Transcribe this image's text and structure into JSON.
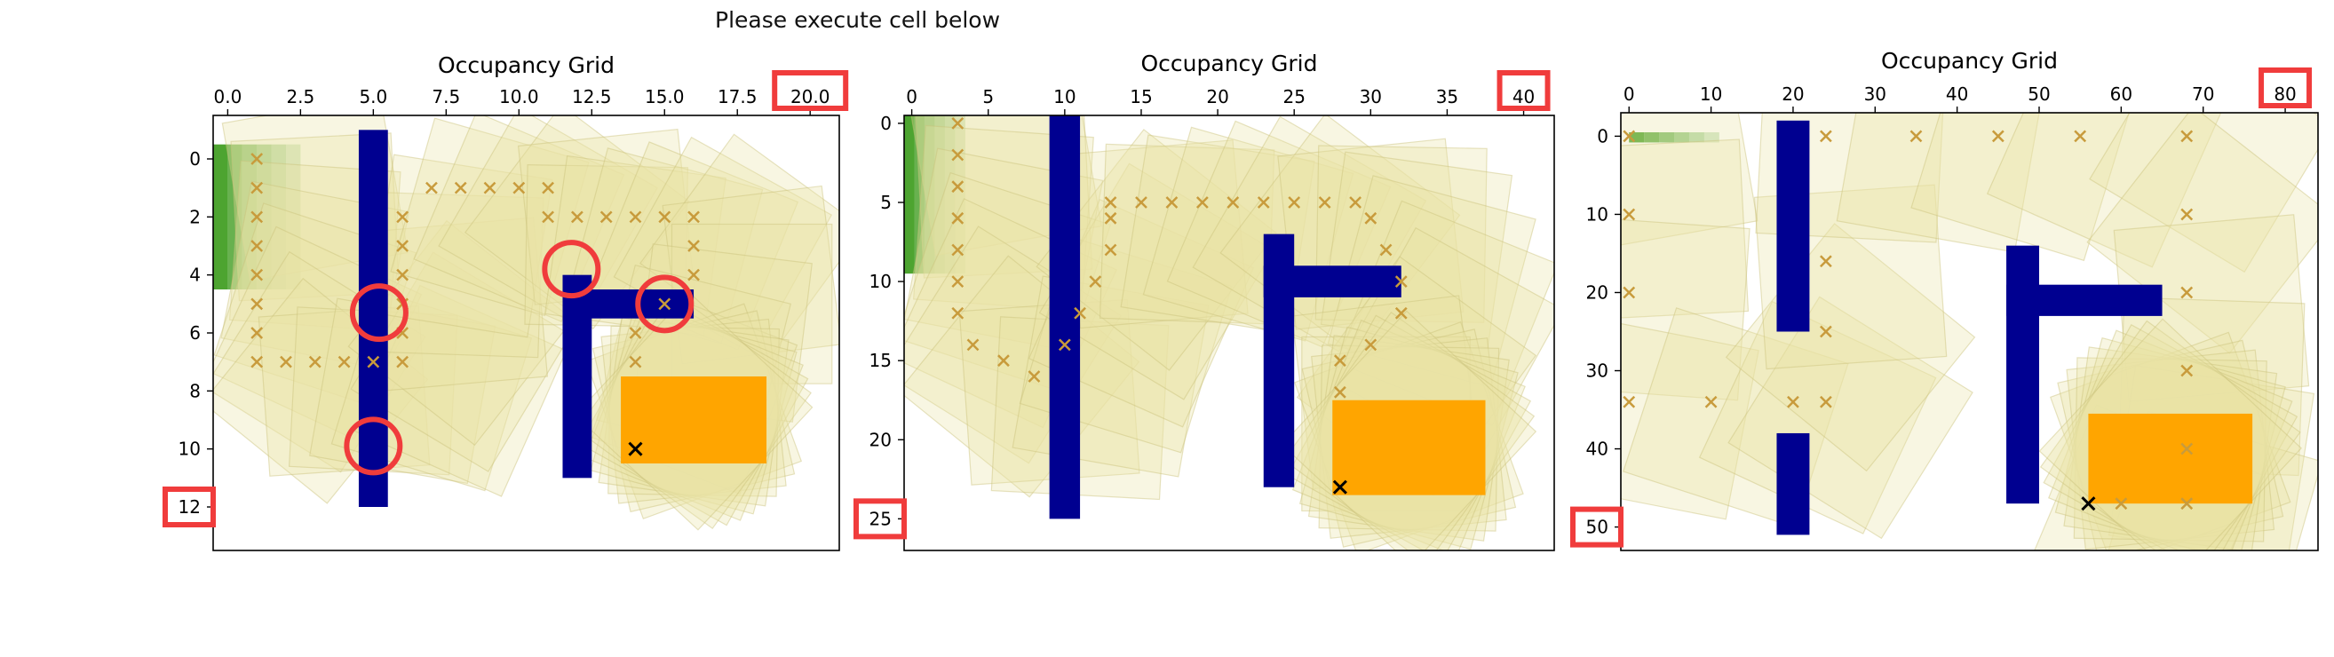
{
  "notebook": {
    "message": "Please execute cell below"
  },
  "colors": {
    "wall": "#000090",
    "goal": "#ffa500",
    "start": "#3a9a1a",
    "path": "#c89b3c",
    "footprint": "#e8e3a5",
    "highlight": "#f03c3c"
  },
  "chart_data": [
    {
      "type": "occupancy-grid",
      "title": "Occupancy Grid",
      "x_ticks": [
        "0.0",
        "2.5",
        "5.0",
        "7.5",
        "10.0",
        "12.5",
        "15.0",
        "17.5",
        "20.0"
      ],
      "y_ticks": [
        "0",
        "2",
        "4",
        "6",
        "8",
        "10",
        "12"
      ],
      "xlim": [
        -0.5,
        21.0
      ],
      "ylim": [
        -1.5,
        13.5
      ],
      "highlighted_x_tick": "20.0",
      "highlighted_y_tick": "12",
      "walls": [
        [
          5,
          -0.5,
          5,
          11.5
        ],
        [
          12,
          4.5,
          12,
          10.5
        ],
        [
          12,
          5,
          15.5,
          5
        ]
      ],
      "wall_width": 1.0,
      "goal_rect": [
        13.5,
        7.5,
        18.5,
        10.5
      ],
      "goal_marker": [
        14,
        10
      ],
      "start_rect": [
        -0.5,
        -0.5,
        2.5,
        4.5
      ],
      "path": [
        [
          1,
          0
        ],
        [
          1,
          1
        ],
        [
          1,
          2
        ],
        [
          1,
          3
        ],
        [
          1,
          4
        ],
        [
          1,
          5
        ],
        [
          1,
          6
        ],
        [
          1,
          7
        ],
        [
          2,
          7
        ],
        [
          3,
          7
        ],
        [
          4,
          7
        ],
        [
          5,
          7
        ],
        [
          6,
          7
        ],
        [
          6,
          6
        ],
        [
          6,
          5
        ],
        [
          6,
          4
        ],
        [
          6,
          3
        ],
        [
          6,
          2
        ],
        [
          7,
          1
        ],
        [
          8,
          1
        ],
        [
          9,
          1
        ],
        [
          10,
          1
        ],
        [
          11,
          1
        ],
        [
          11,
          2
        ],
        [
          12,
          2
        ],
        [
          13,
          2
        ],
        [
          14,
          2
        ],
        [
          15,
          2
        ],
        [
          16,
          2
        ],
        [
          16,
          3
        ],
        [
          16,
          4
        ],
        [
          15,
          5
        ],
        [
          14,
          6
        ],
        [
          14,
          7
        ]
      ],
      "highlights": [
        [
          5.2,
          5.3
        ],
        [
          11.8,
          3.8
        ],
        [
          15.0,
          5.0
        ],
        [
          5.0,
          9.9
        ]
      ]
    },
    {
      "type": "occupancy-grid",
      "title": "",
      "x_ticks": [
        "0",
        "5",
        "10",
        "15",
        "20",
        "25",
        "30",
        "35",
        "40"
      ],
      "y_ticks": [
        "0",
        "5",
        "10",
        "15",
        "20",
        "25"
      ],
      "xlim": [
        -0.5,
        42.0
      ],
      "ylim": [
        -0.5,
        27.0
      ],
      "highlighted_x_tick": "40",
      "highlighted_y_tick": "25",
      "walls": [
        [
          10,
          0,
          10,
          24
        ],
        [
          24,
          8,
          24,
          22
        ],
        [
          24,
          10,
          31,
          10
        ]
      ],
      "wall_width": 2.0,
      "goal_rect": [
        27.5,
        17.5,
        37.5,
        23.5
      ],
      "goal_marker": [
        28,
        23
      ],
      "start_rect": [
        -0.5,
        -0.5,
        3.5,
        9.5
      ],
      "path": [
        [
          3,
          0
        ],
        [
          3,
          2
        ],
        [
          3,
          4
        ],
        [
          3,
          6
        ],
        [
          3,
          8
        ],
        [
          3,
          10
        ],
        [
          3,
          12
        ],
        [
          4,
          14
        ],
        [
          6,
          15
        ],
        [
          8,
          16
        ],
        [
          10,
          14
        ],
        [
          11,
          12
        ],
        [
          12,
          10
        ],
        [
          13,
          8
        ],
        [
          13,
          6
        ],
        [
          13,
          5
        ],
        [
          15,
          5
        ],
        [
          17,
          5
        ],
        [
          19,
          5
        ],
        [
          21,
          5
        ],
        [
          23,
          5
        ],
        [
          25,
          5
        ],
        [
          27,
          5
        ],
        [
          29,
          5
        ],
        [
          30,
          6
        ],
        [
          31,
          8
        ],
        [
          32,
          10
        ],
        [
          32,
          12
        ],
        [
          30,
          14
        ],
        [
          28,
          15
        ],
        [
          28,
          17
        ]
      ],
      "highlights": []
    },
    {
      "type": "occupancy-grid",
      "title": "Occupancy Grid",
      "x_ticks": [
        "0",
        "10",
        "20",
        "30",
        "40",
        "50",
        "60",
        "70",
        "80"
      ],
      "y_ticks": [
        "0",
        "10",
        "20",
        "30",
        "40",
        "50"
      ],
      "xlim": [
        -1.0,
        84.0
      ],
      "ylim": [
        -3.0,
        53.0
      ],
      "highlighted_x_tick": "80",
      "highlighted_y_tick": "50",
      "walls": [
        [
          20,
          0,
          20,
          23
        ],
        [
          20,
          40,
          20,
          49
        ],
        [
          48,
          16,
          48,
          45
        ],
        [
          48,
          21,
          63,
          21
        ]
      ],
      "wall_width": 4.0,
      "goal_rect": [
        56,
        35.5,
        76,
        47
      ],
      "goal_marker": [
        56,
        47
      ],
      "start_rect": [
        0,
        -0.5,
        11,
        0.8
      ],
      "path": [
        [
          0,
          0
        ],
        [
          0,
          10
        ],
        [
          0,
          20
        ],
        [
          0,
          34
        ],
        [
          10,
          34
        ],
        [
          20,
          34
        ],
        [
          24,
          34
        ],
        [
          24,
          25
        ],
        [
          24,
          16
        ],
        [
          24,
          0
        ],
        [
          35,
          0
        ],
        [
          45,
          0
        ],
        [
          55,
          0
        ],
        [
          68,
          0
        ],
        [
          68,
          10
        ],
        [
          68,
          20
        ],
        [
          68,
          30
        ],
        [
          68,
          40
        ],
        [
          68,
          47
        ],
        [
          60,
          47
        ]
      ],
      "highlights": []
    }
  ]
}
